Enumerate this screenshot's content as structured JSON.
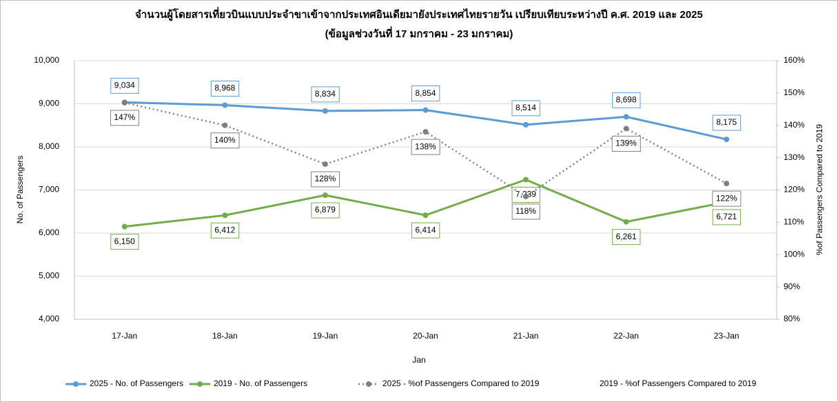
{
  "chart_data": {
    "type": "line",
    "title": "จำนวนผู้โดยสารเที่ยวบินแบบประจำขาเข้าจากประเทศอินเดียมายังประเทศไทยรายวัน เปรียบเทียบระหว่างปี ค.ศ. 2019 และ 2025",
    "subtitle": "(ข้อมูลช่วงวันที่ 17 มกราคม - 23 มกราคม)",
    "x_label": "Jan",
    "y_label": "No. of Passengers",
    "y2_label": "%of Passengers Compared to 2019",
    "categories": [
      "17-Jan",
      "18-Jan",
      "19-Jan",
      "20-Jan",
      "21-Jan",
      "22-Jan",
      "23-Jan"
    ],
    "ylim": [
      4000,
      10000
    ],
    "yticks": [
      {
        "value": 4000,
        "label": "4,000"
      },
      {
        "value": 5000,
        "label": "5,000"
      },
      {
        "value": 6000,
        "label": "6,000"
      },
      {
        "value": 7000,
        "label": "7,000"
      },
      {
        "value": 8000,
        "label": "8,000"
      },
      {
        "value": 9000,
        "label": "9,000"
      },
      {
        "value": 10000,
        "label": "10,000"
      }
    ],
    "y2lim": [
      80,
      160
    ],
    "y2ticks": [
      {
        "value": 80,
        "label": "80%"
      },
      {
        "value": 90,
        "label": "90%"
      },
      {
        "value": 100,
        "label": "100%"
      },
      {
        "value": 110,
        "label": "110%"
      },
      {
        "value": 120,
        "label": "120%"
      },
      {
        "value": 130,
        "label": "130%"
      },
      {
        "value": 140,
        "label": "140%"
      },
      {
        "value": 150,
        "label": "150%"
      },
      {
        "value": 160,
        "label": "160%"
      }
    ],
    "grid": true,
    "legend": "bottom",
    "series": [
      {
        "name": "2025 - No. of Passengers",
        "color": "#5b9bd5",
        "values": [
          9034,
          8968,
          8834,
          8854,
          8514,
          8698,
          8175
        ],
        "value_labels": [
          "9,034",
          "8,968",
          "8,834",
          "8,854",
          "8,514",
          "8,698",
          "8,175"
        ]
      },
      {
        "name": "2019 - No. of Passengers",
        "color": "#70ad47",
        "values": [
          6150,
          6412,
          6879,
          6414,
          7239,
          6261,
          6721
        ],
        "value_labels": [
          "6,150",
          "6,412",
          "6,879",
          "6,414",
          "7,239",
          "6,261",
          "6,721"
        ]
      },
      {
        "name": "2025 - %of Passengers Compared to 2019",
        "color": "#7f7f7f",
        "axis": "y2",
        "dashed": true,
        "values": [
          147,
          140,
          128,
          138,
          118,
          139,
          122
        ],
        "value_labels": [
          "147%",
          "140%",
          "128%",
          "138%",
          "118%",
          "139%",
          "122%"
        ]
      },
      {
        "name": "2019 - %of Passengers Compared to 2019",
        "axis": "y2",
        "values": [
          null,
          null,
          null,
          null,
          null,
          null,
          null
        ]
      }
    ]
  }
}
